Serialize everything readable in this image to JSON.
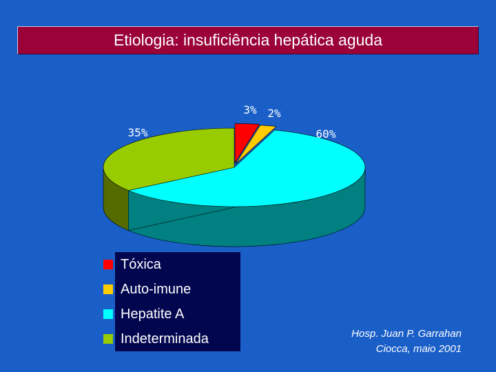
{
  "header": {
    "title": "Etiologia: insuficiência hepática aguda"
  },
  "chart_data": {
    "type": "pie",
    "categories": [
      "Tóxica",
      "Auto-imune",
      "Hepatite A",
      "Indeterminada"
    ],
    "values": [
      3,
      2,
      60,
      35
    ],
    "labels": [
      "3%",
      "2%",
      "60%",
      "35%"
    ],
    "colors": [
      "#ff0000",
      "#ffcc00",
      "#00ffff",
      "#99cc00"
    ],
    "side_colors": [
      "#990000",
      "#997a00",
      "#008080",
      "#556b00"
    ],
    "legend_position": "bottom-left"
  },
  "source": {
    "line1": "Hosp. Juan P. Garrahan",
    "line2": "Ciocca, maio 2001"
  }
}
